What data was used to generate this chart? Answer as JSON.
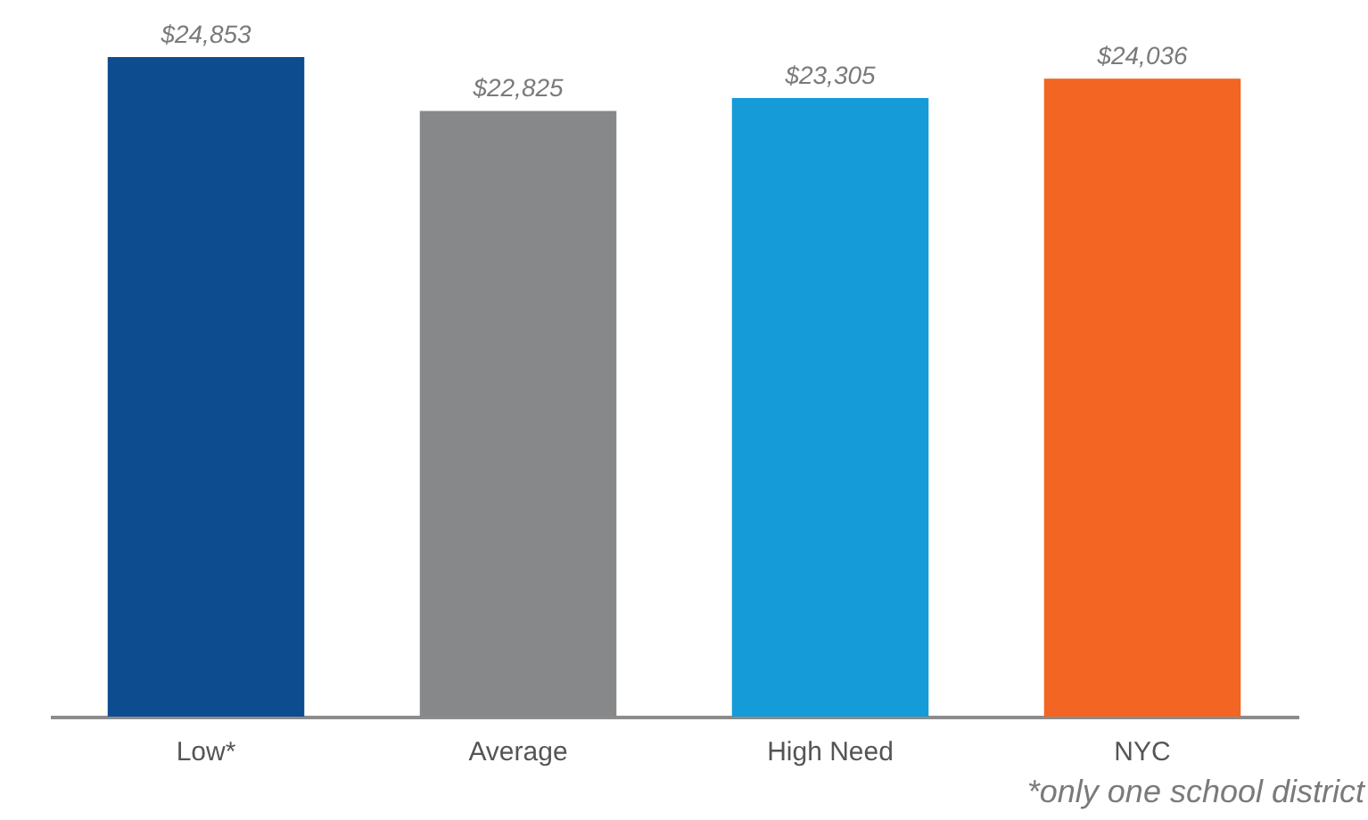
{
  "chart_data": {
    "type": "bar",
    "categories": [
      "Low*",
      "Average",
      "High Need",
      "NYC"
    ],
    "values": [
      24853,
      22825,
      23305,
      24036
    ],
    "colors": [
      "#0d4c8f",
      "#878889",
      "#149bd8",
      "#f26522"
    ],
    "value_labels": [
      "$24,853",
      "$22,825",
      "$23,305",
      "$24,036"
    ],
    "annotations": [
      "*only one school district"
    ]
  }
}
